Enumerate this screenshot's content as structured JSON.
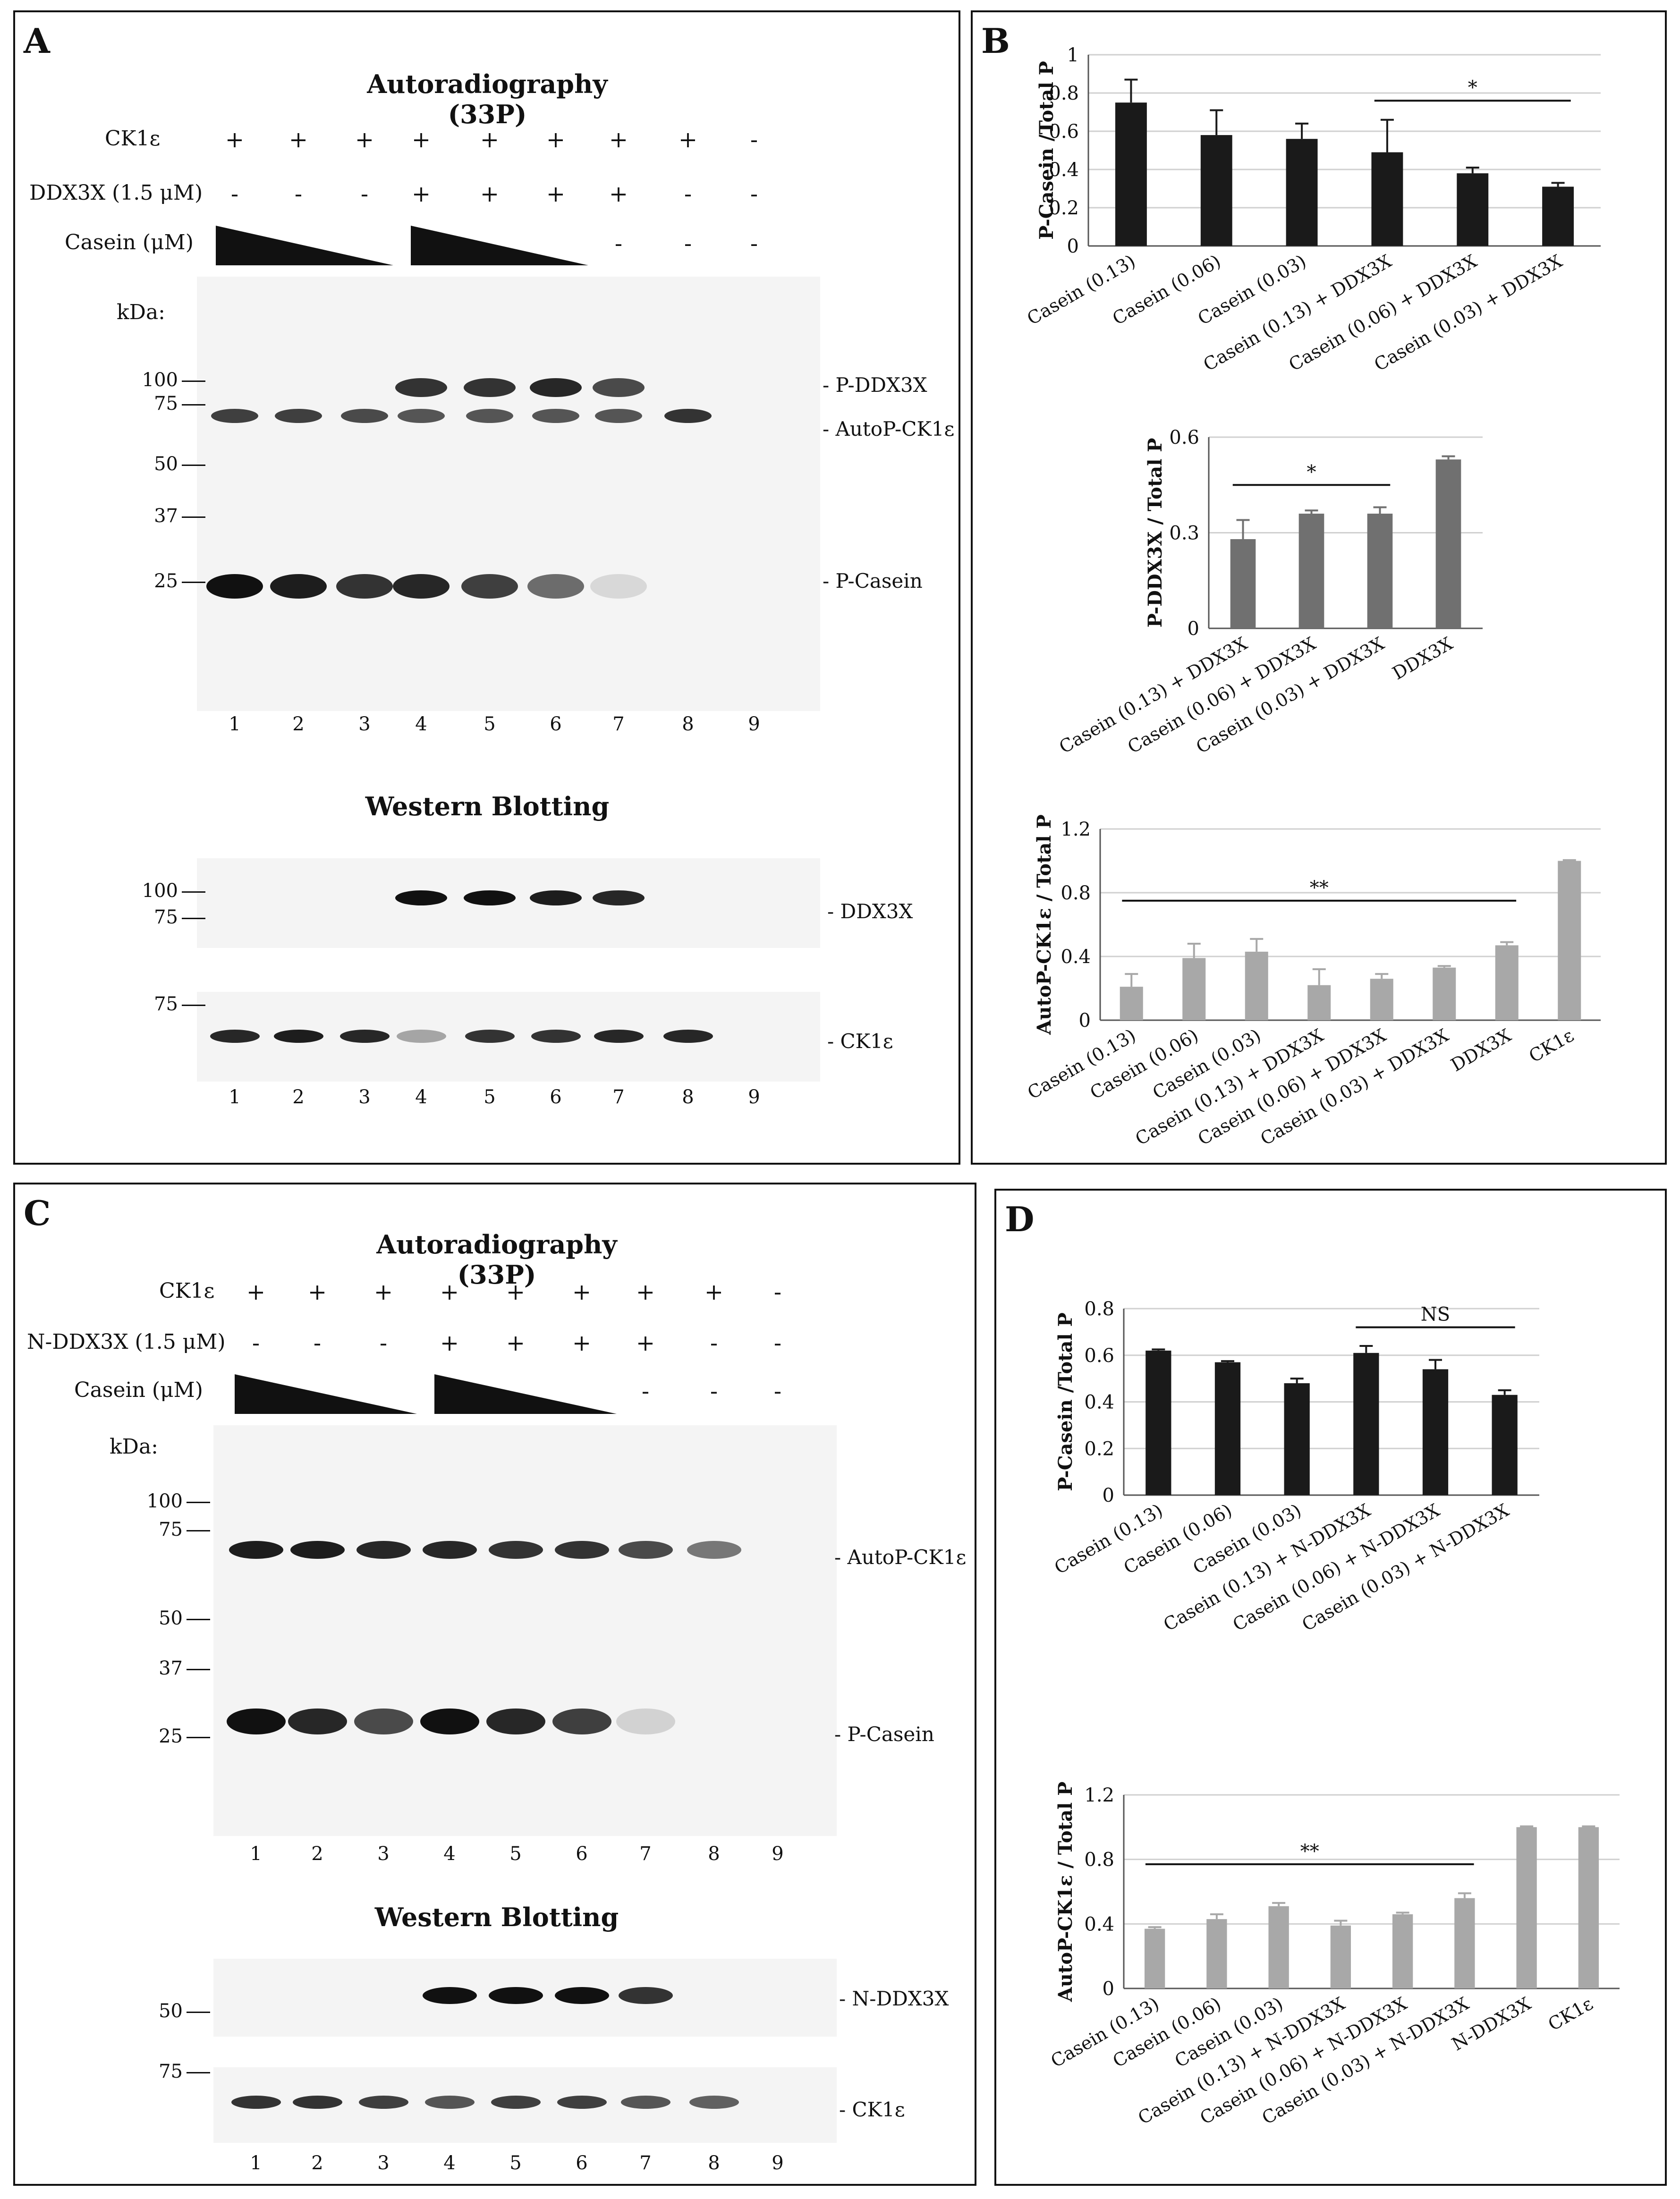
{
  "panel_labels": {
    "a": "A",
    "b": "B",
    "c": "C",
    "d": "D"
  },
  "panel_a": {
    "autorad_title": "Autoradiography (33P)",
    "western_title": "Western Blotting",
    "row_ck1e": {
      "label": "CK1ε",
      "values": [
        "+",
        "+",
        "+",
        "+",
        "+",
        "+",
        "+",
        "+",
        "-"
      ]
    },
    "row_ddx3x": {
      "label": "DDX3X (1.5 μM)",
      "values": [
        "-",
        "-",
        "-",
        "+",
        "+",
        "+",
        "+",
        "-",
        "-"
      ]
    },
    "row_casein": {
      "label": "Casein (μM)",
      "values": [
        "-",
        "-",
        "-"
      ]
    },
    "kda": "kDa:",
    "markers_top": [
      "100",
      "75",
      "50",
      "37",
      "25"
    ],
    "band_labels_top": [
      "- P-DDX3X",
      "- AutoP-CK1ε",
      "- P-Casein"
    ],
    "lanes": [
      "1",
      "2",
      "3",
      "4",
      "5",
      "6",
      "7",
      "8",
      "9"
    ],
    "wb_markers_1": [
      "100",
      "75"
    ],
    "wb_label_1": "- DDX3X",
    "wb_markers_2": [
      "75"
    ],
    "wb_label_2": "- CK1ε"
  },
  "panel_c": {
    "autorad_title": "Autoradiography (33P)",
    "western_title": "Western Blotting",
    "row_ck1e": {
      "label": "CK1ε",
      "values": [
        "+",
        "+",
        "+",
        "+",
        "+",
        "+",
        "+",
        "+",
        "-"
      ]
    },
    "row_ddx3x": {
      "label": "N-DDX3X (1.5 μM)",
      "values": [
        "-",
        "-",
        "-",
        "+",
        "+",
        "+",
        "+",
        "-",
        "-"
      ]
    },
    "row_casein": {
      "label": "Casein (μM)",
      "values": [
        "-",
        "-",
        "-"
      ]
    },
    "kda": "kDa:",
    "markers_top": [
      "100",
      "75",
      "50",
      "37",
      "25"
    ],
    "band_labels_top": [
      "- AutoP-CK1ε",
      "- P-Casein"
    ],
    "lanes": [
      "1",
      "2",
      "3",
      "4",
      "5",
      "6",
      "7",
      "8",
      "9"
    ],
    "wb_markers_1": [
      "50"
    ],
    "wb_label_1": "- N-DDX3X",
    "wb_markers_2": [
      "75"
    ],
    "wb_label_2": "- CK1ε"
  },
  "chart_data": [
    {
      "id": "B1",
      "type": "bar",
      "color": "#1a1a1a",
      "ylabel": "P-Casein /Total P",
      "ylim": [
        0,
        1
      ],
      "yticks": [
        "0",
        "0.2",
        "0.4",
        "0.6",
        "0.8",
        "1"
      ],
      "categories": [
        "Casein (0.13)",
        "Casein (0.06)",
        "Casein (0.03)",
        "Casein (0.13) + DDX3X",
        "Casein (0.06) + DDX3X",
        "Casein (0.03) + DDX3X"
      ],
      "values": [
        0.75,
        0.58,
        0.56,
        0.49,
        0.38,
        0.31
      ],
      "errors": [
        0.12,
        0.13,
        0.08,
        0.17,
        0.03,
        0.02
      ],
      "sig": {
        "label": "*",
        "from": 3,
        "to": 5,
        "y": 0.76
      }
    },
    {
      "id": "B2",
      "type": "bar",
      "color": "#707070",
      "ylabel": "P-DDX3X / Total P",
      "ylim": [
        0,
        0.6
      ],
      "yticks": [
        "0",
        "0.3",
        "0.6"
      ],
      "categories": [
        "Casein (0.13) + DDX3X",
        "Casein (0.06) + DDX3X",
        "Casein (0.03) + DDX3X",
        "DDX3X"
      ],
      "values": [
        0.28,
        0.36,
        0.36,
        0.53
      ],
      "errors": [
        0.06,
        0.01,
        0.02,
        0.01
      ],
      "sig": {
        "label": "*",
        "from": 0,
        "to": 2,
        "y": 0.45
      }
    },
    {
      "id": "B3",
      "type": "bar",
      "color": "#a8a8a8",
      "ylabel": "AutoP-CK1ε / Total P",
      "ylim": [
        0,
        1.2
      ],
      "yticks": [
        "0",
        "0.4",
        "0.8",
        "1.2"
      ],
      "categories": [
        "Casein (0.13)",
        "Casein (0.06)",
        "Casein (0.03)",
        "Casein (0.13) + DDX3X",
        "Casein (0.06) + DDX3X",
        "Casein (0.03) + DDX3X",
        "DDX3X",
        "CK1ε"
      ],
      "values": [
        0.21,
        0.39,
        0.43,
        0.22,
        0.26,
        0.33,
        0.47,
        1.0
      ],
      "errors": [
        0.08,
        0.09,
        0.08,
        0.1,
        0.03,
        0.01,
        0.02,
        0.005
      ],
      "sig": {
        "label": "**",
        "from": 0,
        "to": 6,
        "y": 0.75
      }
    },
    {
      "id": "D1",
      "type": "bar",
      "color": "#1a1a1a",
      "ylabel": "P-Casein /Total P",
      "ylim": [
        0,
        0.8
      ],
      "yticks": [
        "0",
        "0.2",
        "0.4",
        "0.6",
        "0.8"
      ],
      "categories": [
        "Casein (0.13)",
        "Casein (0.06)",
        "Casein (0.03)",
        "Casein (0.13) + N-DDX3X",
        "Casein (0.06) + N-DDX3X",
        "Casein (0.03) + N-DDX3X"
      ],
      "values": [
        0.62,
        0.57,
        0.48,
        0.61,
        0.54,
        0.43
      ],
      "errors": [
        0.005,
        0.005,
        0.02,
        0.03,
        0.04,
        0.02
      ],
      "sig": {
        "label": "NS",
        "from": 3,
        "to": 5,
        "y": 0.72
      }
    },
    {
      "id": "D2",
      "type": "bar",
      "color": "#a8a8a8",
      "ylabel": "AutoP-CK1ε / Total P",
      "ylim": [
        0,
        1.2
      ],
      "yticks": [
        "0",
        "0.4",
        "0.8",
        "1.2"
      ],
      "categories": [
        "Casein (0.13)",
        "Casein (0.06)",
        "Casein (0.03)",
        "Casein (0.13) + N-DDX3X",
        "Casein (0.06) + N-DDX3X",
        "Casein (0.03) + N-DDX3X",
        "N-DDX3X",
        "CK1ε"
      ],
      "values": [
        0.37,
        0.43,
        0.51,
        0.39,
        0.46,
        0.56,
        1.0,
        1.0
      ],
      "errors": [
        0.01,
        0.03,
        0.02,
        0.03,
        0.01,
        0.03,
        0.005,
        0.005
      ],
      "sig": {
        "label": "**",
        "from": 0,
        "to": 5,
        "y": 0.77
      }
    }
  ]
}
